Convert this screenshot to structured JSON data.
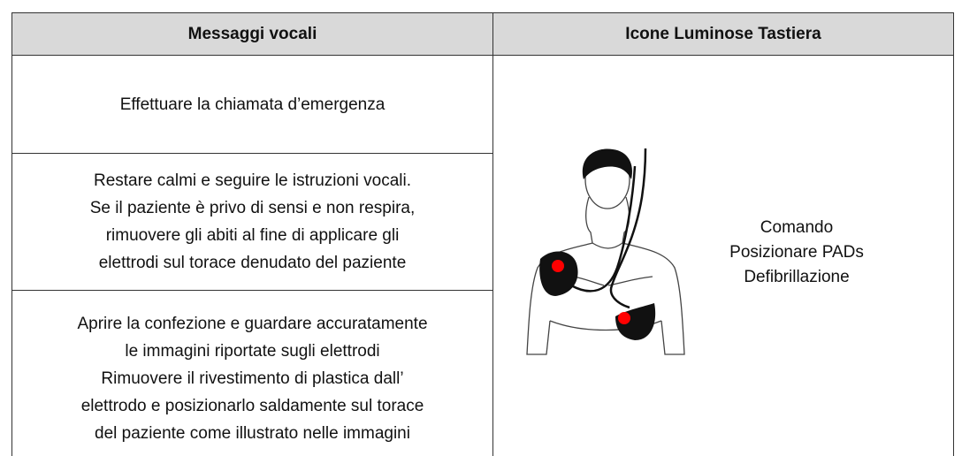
{
  "table": {
    "headers": [
      "Messaggi vocali",
      "Icone Luminose Tastiera"
    ],
    "rows": [
      {
        "lines": [
          "Effettuare la chiamata d’emergenza"
        ]
      },
      {
        "lines": [
          "Restare calmi e seguire le istruzioni vocali.",
          "Se il paziente è privo di sensi e non respira,",
          "rimuovere gli abiti al fine di applicare gli",
          "elettrodi sul torace denudato del paziente"
        ]
      },
      {
        "lines": [
          "Aprire la confezione e guardare accuratamente",
          "le immagini riportate sugli elettrodi",
          "Rimuovere il rivestimento di plastica dall’",
          "elettrodo e posizionarlo saldamente sul torace",
          "del paziente come illustrato nelle immagini"
        ]
      }
    ],
    "side": {
      "lines": [
        "Comando",
        "Posizionare PADs",
        "Defibrillazione"
      ]
    }
  }
}
